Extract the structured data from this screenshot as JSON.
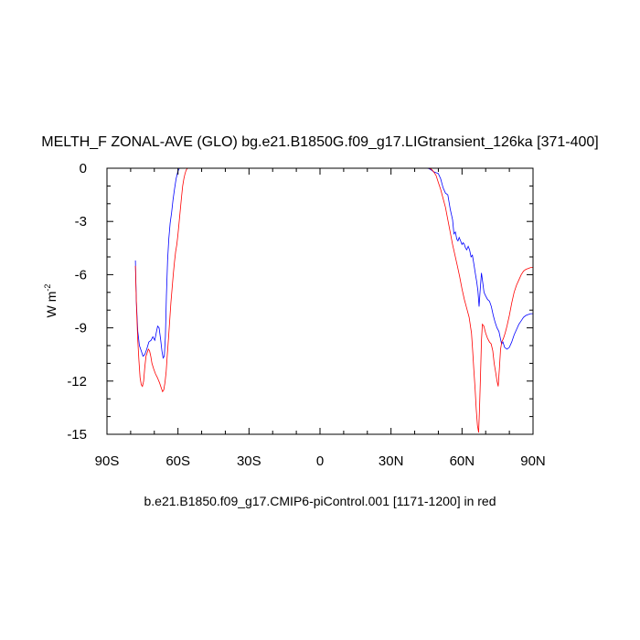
{
  "chart_data": {
    "type": "line",
    "title": "MELTH_F ZONAL-AVE (GLO) bg.e21.B1850G.f09_g17.LIGtransient_126ka [371-400]",
    "ylabel": "W m",
    "ylabel_exponent": "-2",
    "xlabel": "b.e21.B1850.f09_g17.CMIP6-piControl.001 [1171-1200] in red",
    "xlim": [
      -90,
      90
    ],
    "ylim": [
      -15,
      0
    ],
    "x_ticks": [
      {
        "value": -90,
        "label": "90S"
      },
      {
        "value": -60,
        "label": "60S"
      },
      {
        "value": -30,
        "label": "30S"
      },
      {
        "value": 0,
        "label": "0"
      },
      {
        "value": 30,
        "label": "30N"
      },
      {
        "value": 60,
        "label": "60N"
      },
      {
        "value": 90,
        "label": "90N"
      }
    ],
    "y_ticks": [
      {
        "value": 0,
        "label": "0"
      },
      {
        "value": -3,
        "label": "-3"
      },
      {
        "value": -6,
        "label": "-6"
      },
      {
        "value": -9,
        "label": "-9"
      },
      {
        "value": -12,
        "label": "-12"
      },
      {
        "value": -15,
        "label": "-15"
      }
    ],
    "grid": false,
    "series": [
      {
        "color": "#0000ff",
        "segments": [
          [
            [
              -78,
              -5.2
            ],
            [
              -77.6,
              -7.5
            ],
            [
              -77,
              -9.2
            ],
            [
              -76.3,
              -10
            ],
            [
              -75.5,
              -10.3
            ],
            [
              -74.8,
              -10.6
            ],
            [
              -74,
              -10.5
            ],
            [
              -73.2,
              -10.2
            ],
            [
              -72.3,
              -9.8
            ],
            [
              -71.4,
              -9.7
            ],
            [
              -70.6,
              -9.5
            ],
            [
              -69.8,
              -9.7
            ],
            [
              -69.2,
              -9.3
            ],
            [
              -68.6,
              -8.9
            ],
            [
              -68,
              -9.0
            ],
            [
              -67.3,
              -9.7
            ],
            [
              -66.8,
              -10.3
            ],
            [
              -66.3,
              -10.7
            ],
            [
              -65.8,
              -10.6
            ],
            [
              -65.3,
              -9.5
            ],
            [
              -64.9,
              -7.2
            ],
            [
              -64.4,
              -5.2
            ],
            [
              -63.9,
              -4.0
            ],
            [
              -63.3,
              -3.1
            ],
            [
              -62.7,
              -2.5
            ],
            [
              -62.1,
              -1.8
            ],
            [
              -61.5,
              -1.2
            ],
            [
              -60.8,
              -0.6
            ],
            [
              -60.1,
              -0.2
            ],
            [
              -59.4,
              0
            ],
            [
              -58.5,
              0
            ],
            [
              -57,
              0
            ]
          ],
          [
            [
              45,
              0
            ],
            [
              46,
              -0.02
            ],
            [
              47,
              -0.1
            ],
            [
              48,
              -0.2
            ],
            [
              49,
              -0.25
            ],
            [
              50,
              -0.3
            ],
            [
              51,
              -0.6
            ],
            [
              52,
              -1.1
            ],
            [
              53,
              -1.4
            ],
            [
              54,
              -1.5
            ],
            [
              55,
              -2.3
            ],
            [
              56,
              -2.9
            ],
            [
              56.6,
              -3.7
            ],
            [
              57.2,
              -3.6
            ],
            [
              57.8,
              -4.0
            ],
            [
              58.3,
              -4.1
            ],
            [
              58.8,
              -3.9
            ],
            [
              59.4,
              -4.1
            ],
            [
              60,
              -4.3
            ],
            [
              60.5,
              -4.2
            ],
            [
              61,
              -4.3
            ],
            [
              61.5,
              -4.5
            ],
            [
              62,
              -4.6
            ],
            [
              62.6,
              -4.4
            ],
            [
              63.2,
              -4.6
            ],
            [
              63.8,
              -5.0
            ],
            [
              64.4,
              -4.9
            ],
            [
              65,
              -5.4
            ],
            [
              65.7,
              -6.0
            ],
            [
              66.2,
              -6.4
            ],
            [
              66.7,
              -6.9
            ],
            [
              67.2,
              -7.8
            ],
            [
              67.7,
              -6.8
            ],
            [
              68.2,
              -5.9
            ],
            [
              68.7,
              -6.4
            ],
            [
              69.3,
              -7.0
            ],
            [
              70,
              -7.2
            ],
            [
              70.8,
              -7.4
            ],
            [
              71.6,
              -7.5
            ],
            [
              72.4,
              -7.8
            ],
            [
              73.2,
              -8.3
            ],
            [
              74,
              -8.7
            ],
            [
              74.8,
              -9.0
            ],
            [
              75.6,
              -9.2
            ],
            [
              76.2,
              -9.6
            ],
            [
              76.7,
              -9.9
            ],
            [
              77.3,
              -9.8
            ],
            [
              78,
              -10.1
            ],
            [
              79,
              -10.2
            ],
            [
              80,
              -10.1
            ],
            [
              81,
              -9.8
            ],
            [
              82,
              -9.4
            ],
            [
              83,
              -9.1
            ],
            [
              84,
              -8.8
            ],
            [
              85,
              -8.6
            ],
            [
              86,
              -8.4
            ],
            [
              87,
              -8.3
            ],
            [
              88,
              -8.25
            ],
            [
              89,
              -8.2
            ],
            [
              90,
              -8.2
            ]
          ]
        ]
      },
      {
        "color": "#ff0000",
        "segments": [
          [
            [
              -78,
              -5.5
            ],
            [
              -77.5,
              -8.0
            ],
            [
              -77,
              -9.7
            ],
            [
              -76.5,
              -10.8
            ],
            [
              -76,
              -11.8
            ],
            [
              -75.5,
              -12.2
            ],
            [
              -75,
              -12.3
            ],
            [
              -74.5,
              -12.0
            ],
            [
              -74,
              -11.2
            ],
            [
              -73.5,
              -10.6
            ],
            [
              -73,
              -10.4
            ],
            [
              -72.5,
              -10.2
            ],
            [
              -72,
              -10.3
            ],
            [
              -71.5,
              -10.6
            ],
            [
              -71,
              -11.0
            ],
            [
              -70.3,
              -11.3
            ],
            [
              -69.5,
              -11.6
            ],
            [
              -68.7,
              -11.8
            ],
            [
              -67.8,
              -12.1
            ],
            [
              -67,
              -12.4
            ],
            [
              -66.5,
              -12.6
            ],
            [
              -66,
              -12.5
            ],
            [
              -65.5,
              -12.1
            ],
            [
              -65,
              -11.5
            ],
            [
              -64.5,
              -10.5
            ],
            [
              -64,
              -9.6
            ],
            [
              -63.5,
              -8.6
            ],
            [
              -63,
              -7.6
            ],
            [
              -62.5,
              -6.8
            ],
            [
              -62,
              -6.0
            ],
            [
              -61.5,
              -5.3
            ],
            [
              -61,
              -4.7
            ],
            [
              -60.5,
              -4.3
            ],
            [
              -60,
              -3.7
            ],
            [
              -59.5,
              -3.0
            ],
            [
              -59,
              -2.3
            ],
            [
              -58.5,
              -1.6
            ],
            [
              -58,
              -1.0
            ],
            [
              -57.5,
              -0.6
            ],
            [
              -57,
              -0.3
            ],
            [
              -56.5,
              -0.1
            ],
            [
              -56,
              0
            ],
            [
              -54,
              0
            ]
          ],
          [
            [
              46,
              0
            ],
            [
              47,
              -0.05
            ],
            [
              48,
              -0.2
            ],
            [
              49,
              -0.4
            ],
            [
              50,
              -0.8
            ],
            [
              51,
              -1.2
            ],
            [
              52,
              -1.7
            ],
            [
              53,
              -2.2
            ],
            [
              54,
              -2.9
            ],
            [
              55,
              -3.6
            ],
            [
              56,
              -4.3
            ],
            [
              57,
              -4.9
            ],
            [
              58,
              -5.5
            ],
            [
              59,
              -6.1
            ],
            [
              60,
              -6.8
            ],
            [
              61,
              -7.4
            ],
            [
              62,
              -7.9
            ],
            [
              63,
              -8.4
            ],
            [
              64,
              -9.3
            ],
            [
              64.5,
              -10.3
            ],
            [
              65,
              -11.4
            ],
            [
              65.5,
              -12.4
            ],
            [
              66,
              -13.6
            ],
            [
              66.5,
              -14.5
            ],
            [
              67,
              -14.9
            ],
            [
              67.4,
              -13.5
            ],
            [
              67.8,
              -11.8
            ],
            [
              68.2,
              -9.7
            ],
            [
              68.6,
              -8.8
            ],
            [
              69.2,
              -8.9
            ],
            [
              70,
              -9.3
            ],
            [
              70.8,
              -9.6
            ],
            [
              71.6,
              -9.8
            ],
            [
              72.3,
              -9.9
            ],
            [
              73,
              -10.3
            ],
            [
              73.6,
              -11.0
            ],
            [
              74.2,
              -11.5
            ],
            [
              74.8,
              -12.0
            ],
            [
              75.3,
              -12.3
            ],
            [
              75.8,
              -11.3
            ],
            [
              76.3,
              -10.2
            ],
            [
              76.8,
              -9.8
            ],
            [
              77.5,
              -9.6
            ],
            [
              78.2,
              -9.3
            ],
            [
              79,
              -8.9
            ],
            [
              80,
              -8.3
            ],
            [
              81,
              -7.6
            ],
            [
              82,
              -7.0
            ],
            [
              83,
              -6.6
            ],
            [
              84,
              -6.3
            ],
            [
              85,
              -6.0
            ],
            [
              86,
              -5.8
            ],
            [
              87,
              -5.7
            ],
            [
              88,
              -5.65
            ],
            [
              89,
              -5.6
            ],
            [
              90,
              -5.6
            ]
          ]
        ]
      }
    ]
  }
}
